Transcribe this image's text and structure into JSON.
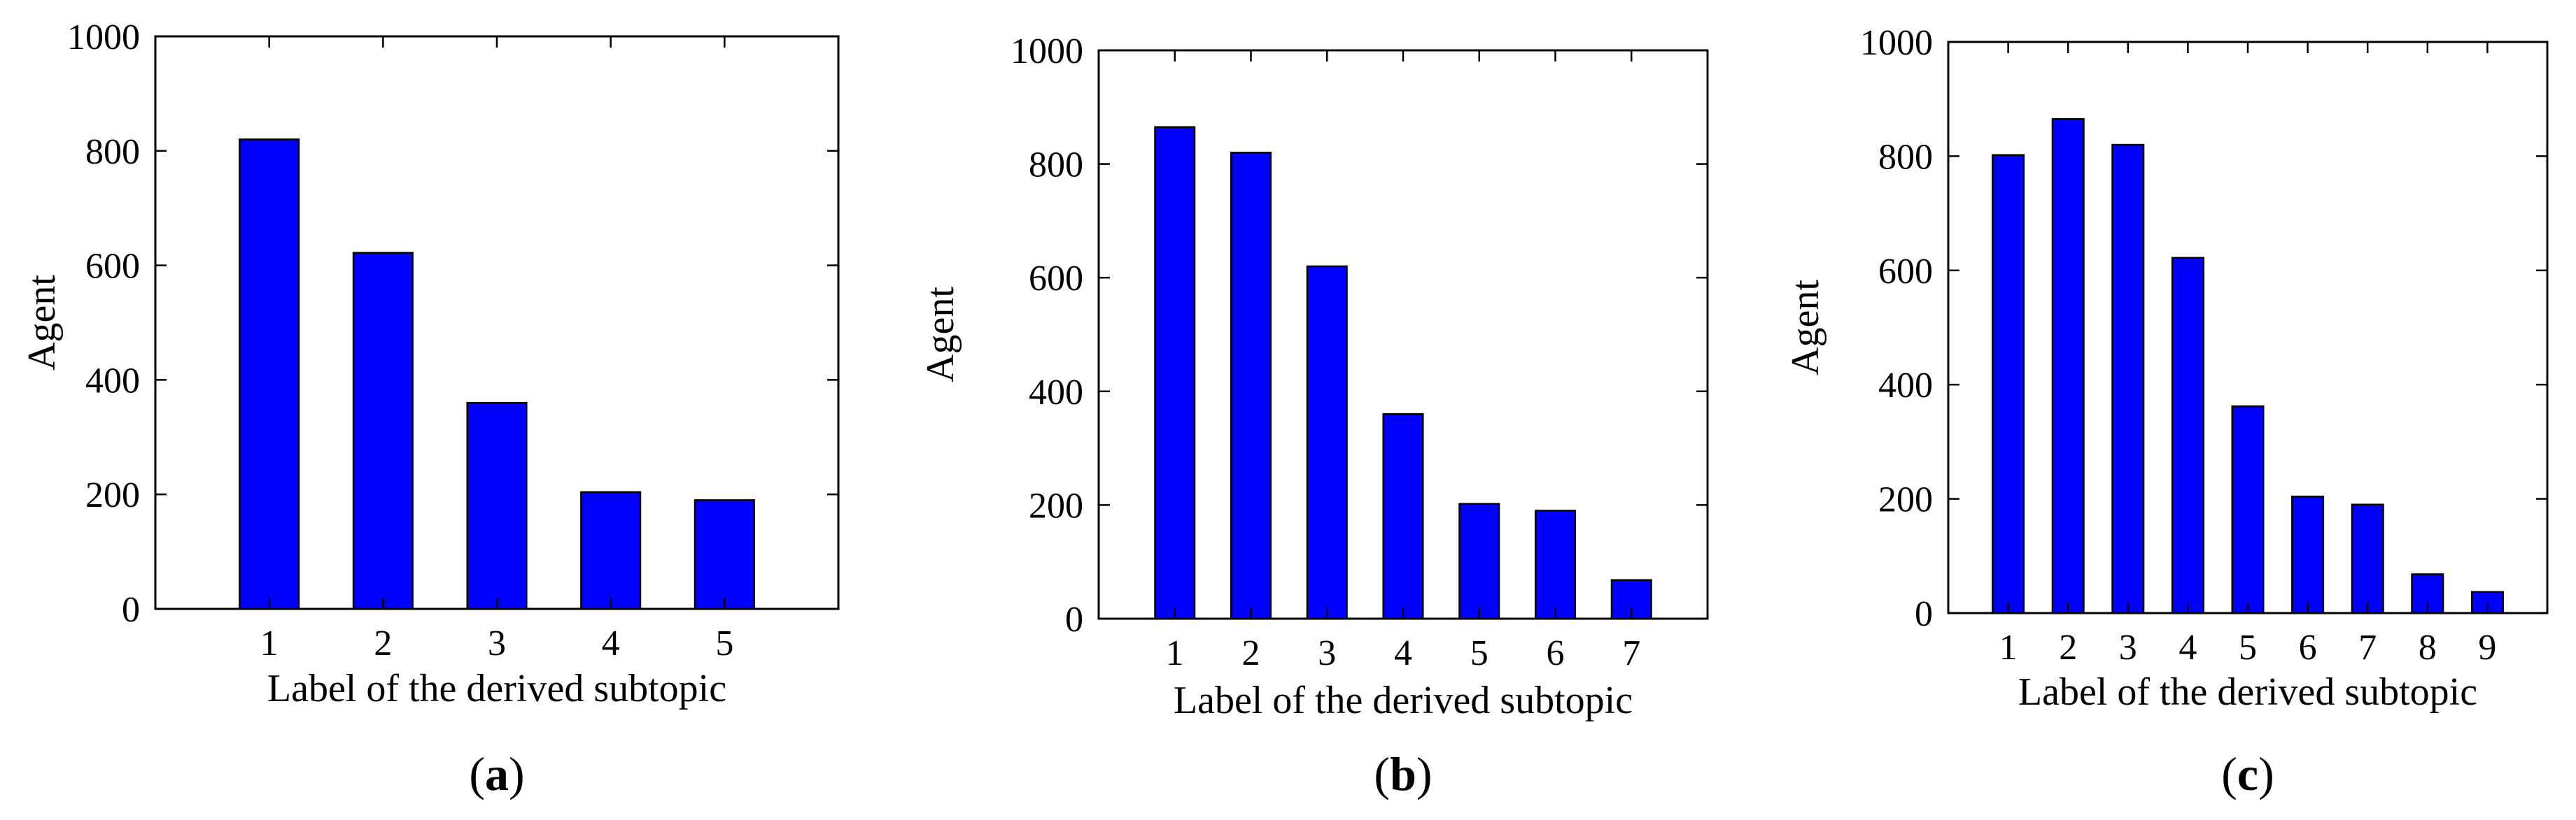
{
  "chart_data": [
    {
      "type": "bar",
      "panel_label": "a",
      "categories": [
        "1",
        "2",
        "3",
        "4",
        "5"
      ],
      "values": [
        820,
        622,
        360,
        204,
        190
      ],
      "xlabel": "Label of the derived subtopic",
      "ylabel": "Agent",
      "ylim": [
        0,
        1000
      ],
      "yticks": [
        "0",
        "200",
        "400",
        "600",
        "800",
        "1000"
      ],
      "bar_color": "#0000ff",
      "grid": false,
      "legend": "none"
    },
    {
      "type": "bar",
      "panel_label": "b",
      "categories": [
        "1",
        "2",
        "3",
        "4",
        "5",
        "6",
        "7"
      ],
      "values": [
        865,
        820,
        620,
        360,
        202,
        190,
        68
      ],
      "xlabel": "Label of the derived subtopic",
      "ylabel": "Agent",
      "ylim": [
        0,
        1000
      ],
      "yticks": [
        "0",
        "200",
        "400",
        "600",
        "800",
        "1000"
      ],
      "bar_color": "#0000ff",
      "grid": false,
      "legend": "none"
    },
    {
      "type": "bar",
      "panel_label": "c",
      "categories": [
        "1",
        "2",
        "3",
        "4",
        "5",
        "6",
        "7",
        "8",
        "9"
      ],
      "values": [
        802,
        865,
        820,
        622,
        362,
        204,
        190,
        68,
        37
      ],
      "xlabel": "Label of the derived subtopic",
      "ylabel": "Agent",
      "ylim": [
        0,
        1000
      ],
      "yticks": [
        "0",
        "200",
        "400",
        "600",
        "800",
        "1000"
      ],
      "bar_color": "#0000ff",
      "grid": false,
      "legend": "none"
    }
  ]
}
